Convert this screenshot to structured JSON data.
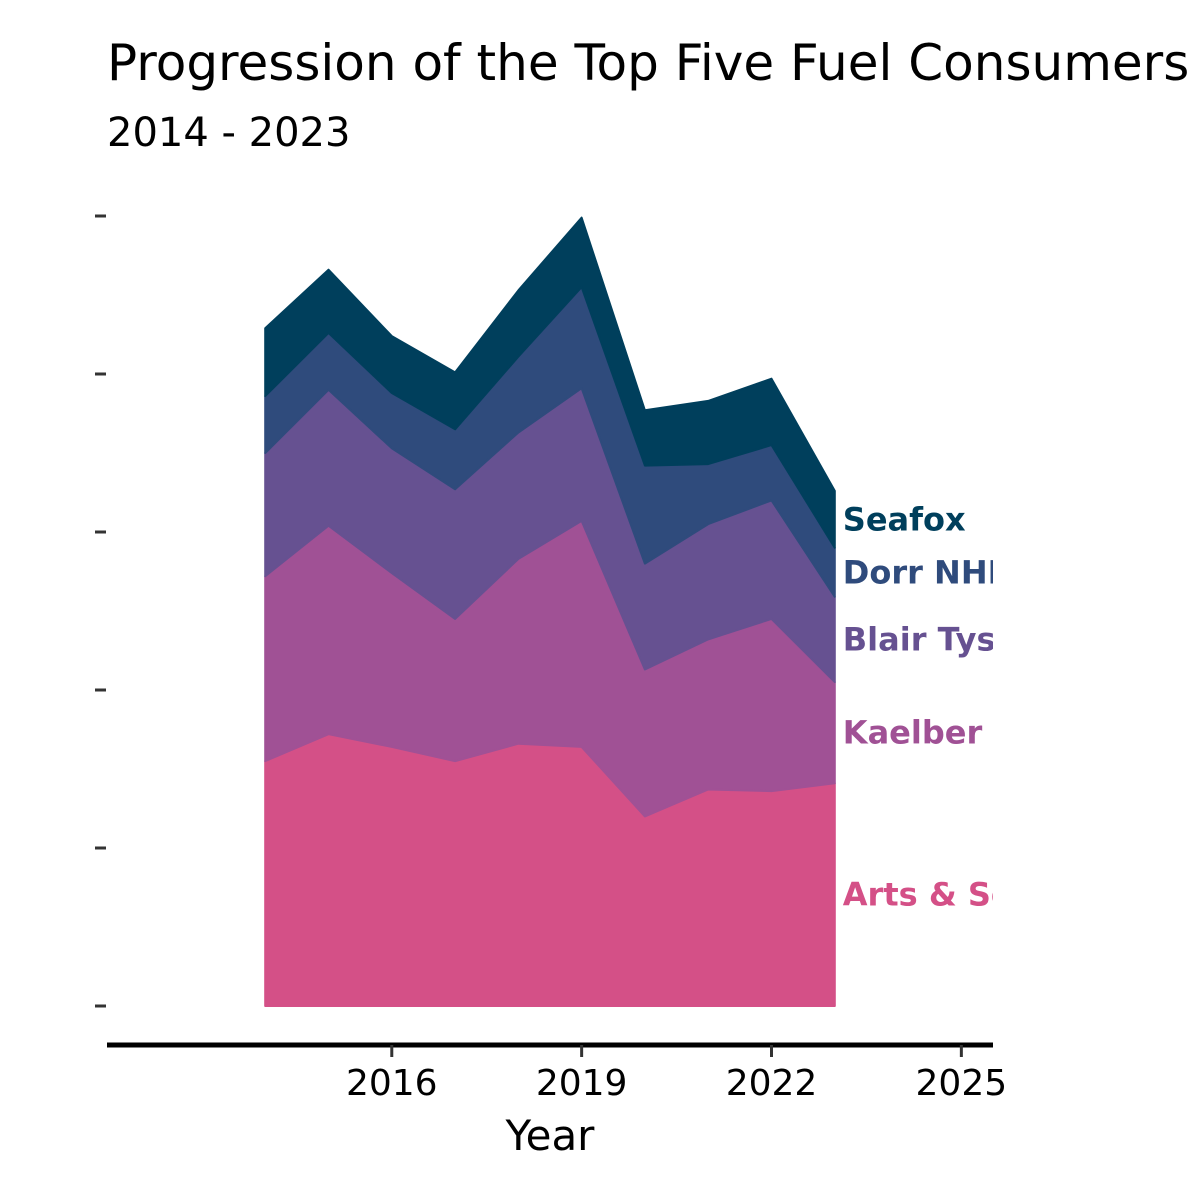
{
  "chart_data": {
    "type": "area",
    "stacked": true,
    "title": "Progression of the Top Five Fuel Consumers",
    "subtitle": "2014 - 2023",
    "xlabel": "Year",
    "ylabel": "",
    "x": [
      2014,
      2015,
      2016,
      2017,
      2018,
      2019,
      2020,
      2021,
      2022,
      2023
    ],
    "xlim": [
      2011.5,
      2025.5
    ],
    "ylim": [
      0,
      5
    ],
    "x_ticks": [
      2016,
      2019,
      2022,
      2025
    ],
    "x_tick_labels": [
      "2016",
      "2019",
      "2022",
      "2025"
    ],
    "y_ticks": [
      0,
      1,
      2,
      3,
      4,
      5
    ],
    "y_tick_labels": [
      "",
      "",
      "",
      "",
      "",
      ""
    ],
    "grid": false,
    "legend": "direct-labels-right",
    "series": [
      {
        "name": "Arts & Science",
        "color": "#D45087",
        "values": [
          1.55,
          1.72,
          1.64,
          1.55,
          1.66,
          1.64,
          1.2,
          1.37,
          1.36,
          1.41
        ]
      },
      {
        "name": "Kaelber",
        "color": "#A05195",
        "values": [
          1.17,
          1.32,
          1.1,
          0.9,
          1.17,
          1.43,
          0.93,
          0.95,
          1.09,
          0.64
        ]
      },
      {
        "name": "Blair Tyson",
        "color": "#665191",
        "values": [
          0.78,
          0.86,
          0.79,
          0.82,
          0.8,
          0.84,
          0.67,
          0.73,
          0.75,
          0.54
        ]
      },
      {
        "name": "Dorr NHM",
        "color": "#2F4B7C",
        "values": [
          0.36,
          0.36,
          0.35,
          0.38,
          0.48,
          0.64,
          0.62,
          0.38,
          0.35,
          0.31
        ]
      },
      {
        "name": "Seafox",
        "color": "#003F5C",
        "values": [
          0.43,
          0.4,
          0.36,
          0.36,
          0.42,
          0.44,
          0.35,
          0.4,
          0.42,
          0.36
        ]
      }
    ]
  }
}
